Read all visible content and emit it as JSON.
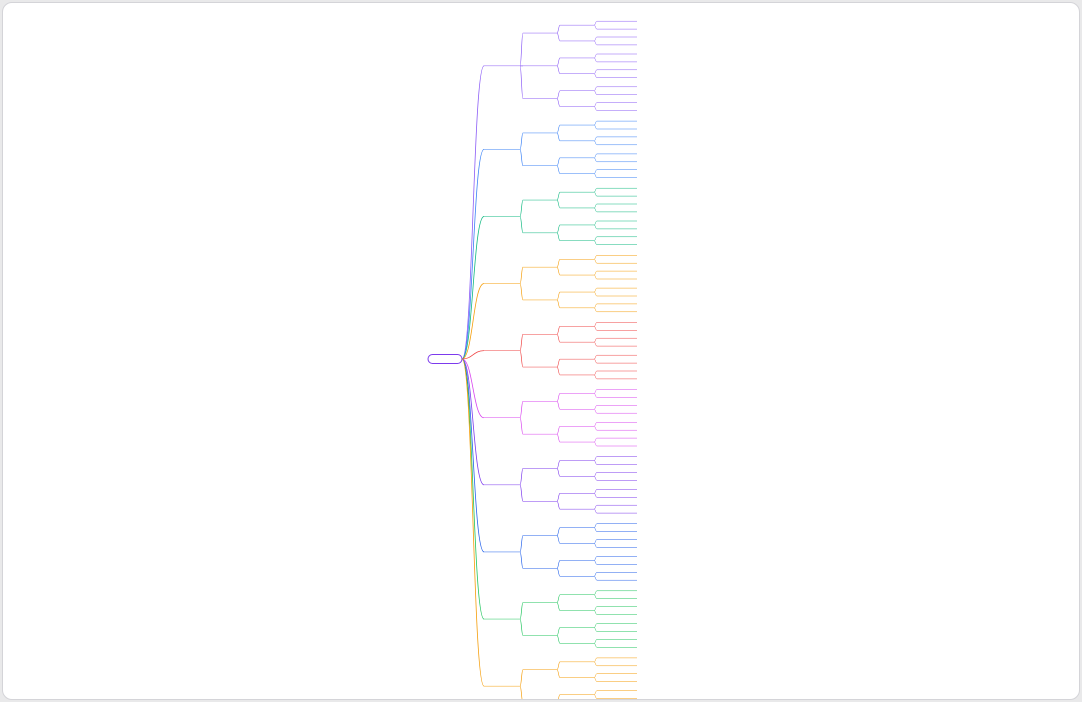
{
  "root": {
    "label": ""
  },
  "branches": [
    {
      "color": "#8b5cf6",
      "label": "",
      "children": [
        {
          "label": "",
          "children": [
            {
              "label": "",
              "children": [
                {
                  "label": ""
                },
                {
                  "label": ""
                }
              ]
            },
            {
              "label": "",
              "children": [
                {
                  "label": ""
                },
                {
                  "label": ""
                }
              ]
            }
          ]
        },
        {
          "label": "",
          "children": [
            {
              "label": "",
              "children": [
                {
                  "label": ""
                },
                {
                  "label": ""
                }
              ]
            },
            {
              "label": "",
              "children": [
                {
                  "label": ""
                },
                {
                  "label": ""
                }
              ]
            }
          ]
        },
        {
          "label": "",
          "children": [
            {
              "label": "",
              "children": [
                {
                  "label": ""
                },
                {
                  "label": ""
                }
              ]
            },
            {
              "label": "",
              "children": [
                {
                  "label": ""
                },
                {
                  "label": ""
                }
              ]
            }
          ]
        }
      ]
    },
    {
      "color": "#3b82f6",
      "label": "",
      "children": [
        {
          "label": "",
          "children": [
            {
              "label": "",
              "children": [
                {
                  "label": ""
                },
                {
                  "label": ""
                }
              ]
            },
            {
              "label": "",
              "children": [
                {
                  "label": ""
                },
                {
                  "label": ""
                }
              ]
            }
          ]
        },
        {
          "label": "",
          "children": [
            {
              "label": "",
              "children": [
                {
                  "label": ""
                },
                {
                  "label": ""
                }
              ]
            },
            {
              "label": "",
              "children": [
                {
                  "label": ""
                },
                {
                  "label": ""
                }
              ]
            }
          ]
        }
      ]
    },
    {
      "color": "#10b981",
      "label": "",
      "children": [
        {
          "label": "",
          "children": [
            {
              "label": "",
              "children": [
                {
                  "label": ""
                },
                {
                  "label": ""
                }
              ]
            },
            {
              "label": "",
              "children": [
                {
                  "label": ""
                },
                {
                  "label": ""
                }
              ]
            }
          ]
        },
        {
          "label": "",
          "children": [
            {
              "label": "",
              "children": [
                {
                  "label": ""
                },
                {
                  "label": ""
                }
              ]
            },
            {
              "label": "",
              "children": [
                {
                  "label": ""
                },
                {
                  "label": ""
                }
              ]
            }
          ]
        }
      ]
    },
    {
      "color": "#f59e0b",
      "label": "",
      "children": [
        {
          "label": "",
          "children": [
            {
              "label": "",
              "children": [
                {
                  "label": ""
                },
                {
                  "label": ""
                }
              ]
            },
            {
              "label": "",
              "children": [
                {
                  "label": ""
                },
                {
                  "label": ""
                }
              ]
            }
          ]
        },
        {
          "label": "",
          "children": [
            {
              "label": "",
              "children": [
                {
                  "label": ""
                },
                {
                  "label": ""
                }
              ]
            },
            {
              "label": "",
              "children": [
                {
                  "label": ""
                },
                {
                  "label": ""
                }
              ]
            }
          ]
        }
      ]
    },
    {
      "color": "#ef4444",
      "label": "",
      "children": [
        {
          "label": "",
          "children": [
            {
              "label": "",
              "children": [
                {
                  "label": ""
                },
                {
                  "label": ""
                }
              ]
            },
            {
              "label": "",
              "children": [
                {
                  "label": ""
                },
                {
                  "label": ""
                }
              ]
            }
          ]
        },
        {
          "label": "",
          "children": [
            {
              "label": "",
              "children": [
                {
                  "label": ""
                },
                {
                  "label": ""
                }
              ]
            },
            {
              "label": "",
              "children": [
                {
                  "label": ""
                },
                {
                  "label": ""
                }
              ]
            }
          ]
        }
      ]
    },
    {
      "color": "#d946ef",
      "label": "",
      "children": [
        {
          "label": "",
          "children": [
            {
              "label": "",
              "children": [
                {
                  "label": ""
                },
                {
                  "label": ""
                }
              ]
            },
            {
              "label": "",
              "children": [
                {
                  "label": ""
                },
                {
                  "label": ""
                }
              ]
            }
          ]
        },
        {
          "label": "",
          "children": [
            {
              "label": "",
              "children": [
                {
                  "label": ""
                },
                {
                  "label": ""
                }
              ]
            },
            {
              "label": "",
              "children": [
                {
                  "label": ""
                },
                {
                  "label": ""
                }
              ]
            }
          ]
        }
      ]
    },
    {
      "color": "#7c3aed",
      "label": "",
      "children": [
        {
          "label": "",
          "children": [
            {
              "label": "",
              "children": [
                {
                  "label": ""
                },
                {
                  "label": ""
                }
              ]
            },
            {
              "label": "",
              "children": [
                {
                  "label": ""
                },
                {
                  "label": ""
                }
              ]
            }
          ]
        },
        {
          "label": "",
          "children": [
            {
              "label": "",
              "children": [
                {
                  "label": ""
                },
                {
                  "label": ""
                }
              ]
            },
            {
              "label": "",
              "children": [
                {
                  "label": ""
                },
                {
                  "label": ""
                }
              ]
            }
          ]
        }
      ]
    },
    {
      "color": "#2563eb",
      "label": "",
      "children": [
        {
          "label": "",
          "children": [
            {
              "label": "",
              "children": [
                {
                  "label": ""
                },
                {
                  "label": ""
                }
              ]
            },
            {
              "label": "",
              "children": [
                {
                  "label": ""
                },
                {
                  "label": ""
                }
              ]
            }
          ]
        },
        {
          "label": "",
          "children": [
            {
              "label": "",
              "children": [
                {
                  "label": ""
                },
                {
                  "label": ""
                }
              ]
            },
            {
              "label": "",
              "children": [
                {
                  "label": ""
                },
                {
                  "label": ""
                }
              ]
            }
          ]
        }
      ]
    },
    {
      "color": "#22c55e",
      "label": "",
      "children": [
        {
          "label": "",
          "children": [
            {
              "label": "",
              "children": [
                {
                  "label": ""
                },
                {
                  "label": ""
                }
              ]
            },
            {
              "label": "",
              "children": [
                {
                  "label": ""
                },
                {
                  "label": ""
                }
              ]
            }
          ]
        },
        {
          "label": "",
          "children": [
            {
              "label": "",
              "children": [
                {
                  "label": ""
                },
                {
                  "label": ""
                }
              ]
            },
            {
              "label": "",
              "children": [
                {
                  "label": ""
                },
                {
                  "label": ""
                }
              ]
            }
          ]
        }
      ]
    },
    {
      "color": "#f59e0b",
      "label": "",
      "children": [
        {
          "label": "",
          "children": [
            {
              "label": "",
              "children": [
                {
                  "label": ""
                },
                {
                  "label": ""
                }
              ]
            },
            {
              "label": "",
              "children": [
                {
                  "label": ""
                },
                {
                  "label": ""
                }
              ]
            }
          ]
        },
        {
          "label": "",
          "children": [
            {
              "label": "",
              "children": [
                {
                  "label": ""
                },
                {
                  "label": ""
                }
              ]
            },
            {
              "label": "",
              "children": [
                {
                  "label": ""
                },
                {
                  "label": ""
                }
              ]
            }
          ]
        }
      ]
    }
  ]
}
